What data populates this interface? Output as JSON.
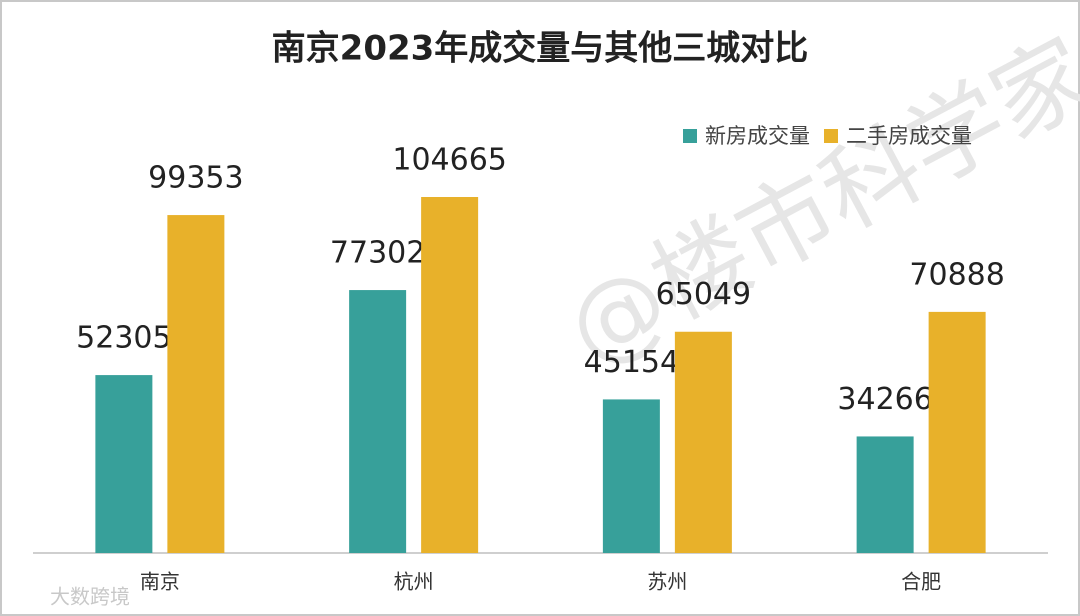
{
  "chart_data": {
    "type": "bar",
    "title": "南京2023年成交量与其他三城对比",
    "categories": [
      "南京",
      "杭州",
      "苏州",
      "合肥"
    ],
    "series": [
      {
        "name": "新房成交量",
        "color": "#37a09a",
        "values": [
          52305,
          77302,
          45154,
          34266
        ]
      },
      {
        "name": "二手房成交量",
        "color": "#e8b12a",
        "values": [
          99353,
          104665,
          65049,
          70888
        ]
      }
    ],
    "legend": "top-right"
  },
  "watermark": "@楼市科学家",
  "corner_mark": "大数跨境"
}
